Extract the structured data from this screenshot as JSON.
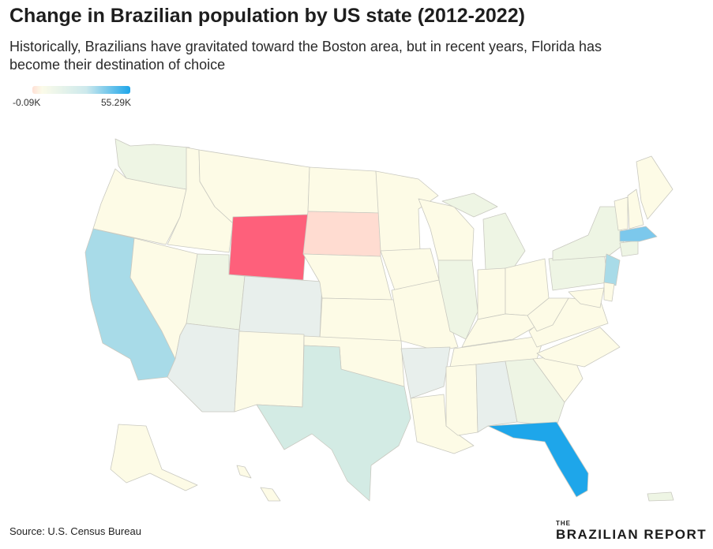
{
  "header": {
    "title": "Change in Brazilian population by US state (2012-2022)",
    "subtitle_line1": "Historically, Brazilians have gravitated toward the Boston area, but in recent years, Florida has",
    "subtitle_line2": "become their destination of choice"
  },
  "legend": {
    "min_label": "-0.09K",
    "max_label": "55.29K"
  },
  "colors": {
    "default": "#fdfbe6",
    "low_negative": "#ffdcd1",
    "slight_green": "#eef5e4",
    "grey_blue": "#e8efec",
    "teal": "#d3ebe4",
    "light_blue": "#a8dbe8",
    "mid_blue": "#7cc8ec",
    "florida": "#1ea6ea",
    "wyoming": "#fe607b"
  },
  "footer": {
    "source": "Source: U.S. Census Bureau",
    "brand_small": "THE",
    "brand_name": "BRAZILIAN REPORT"
  }
}
